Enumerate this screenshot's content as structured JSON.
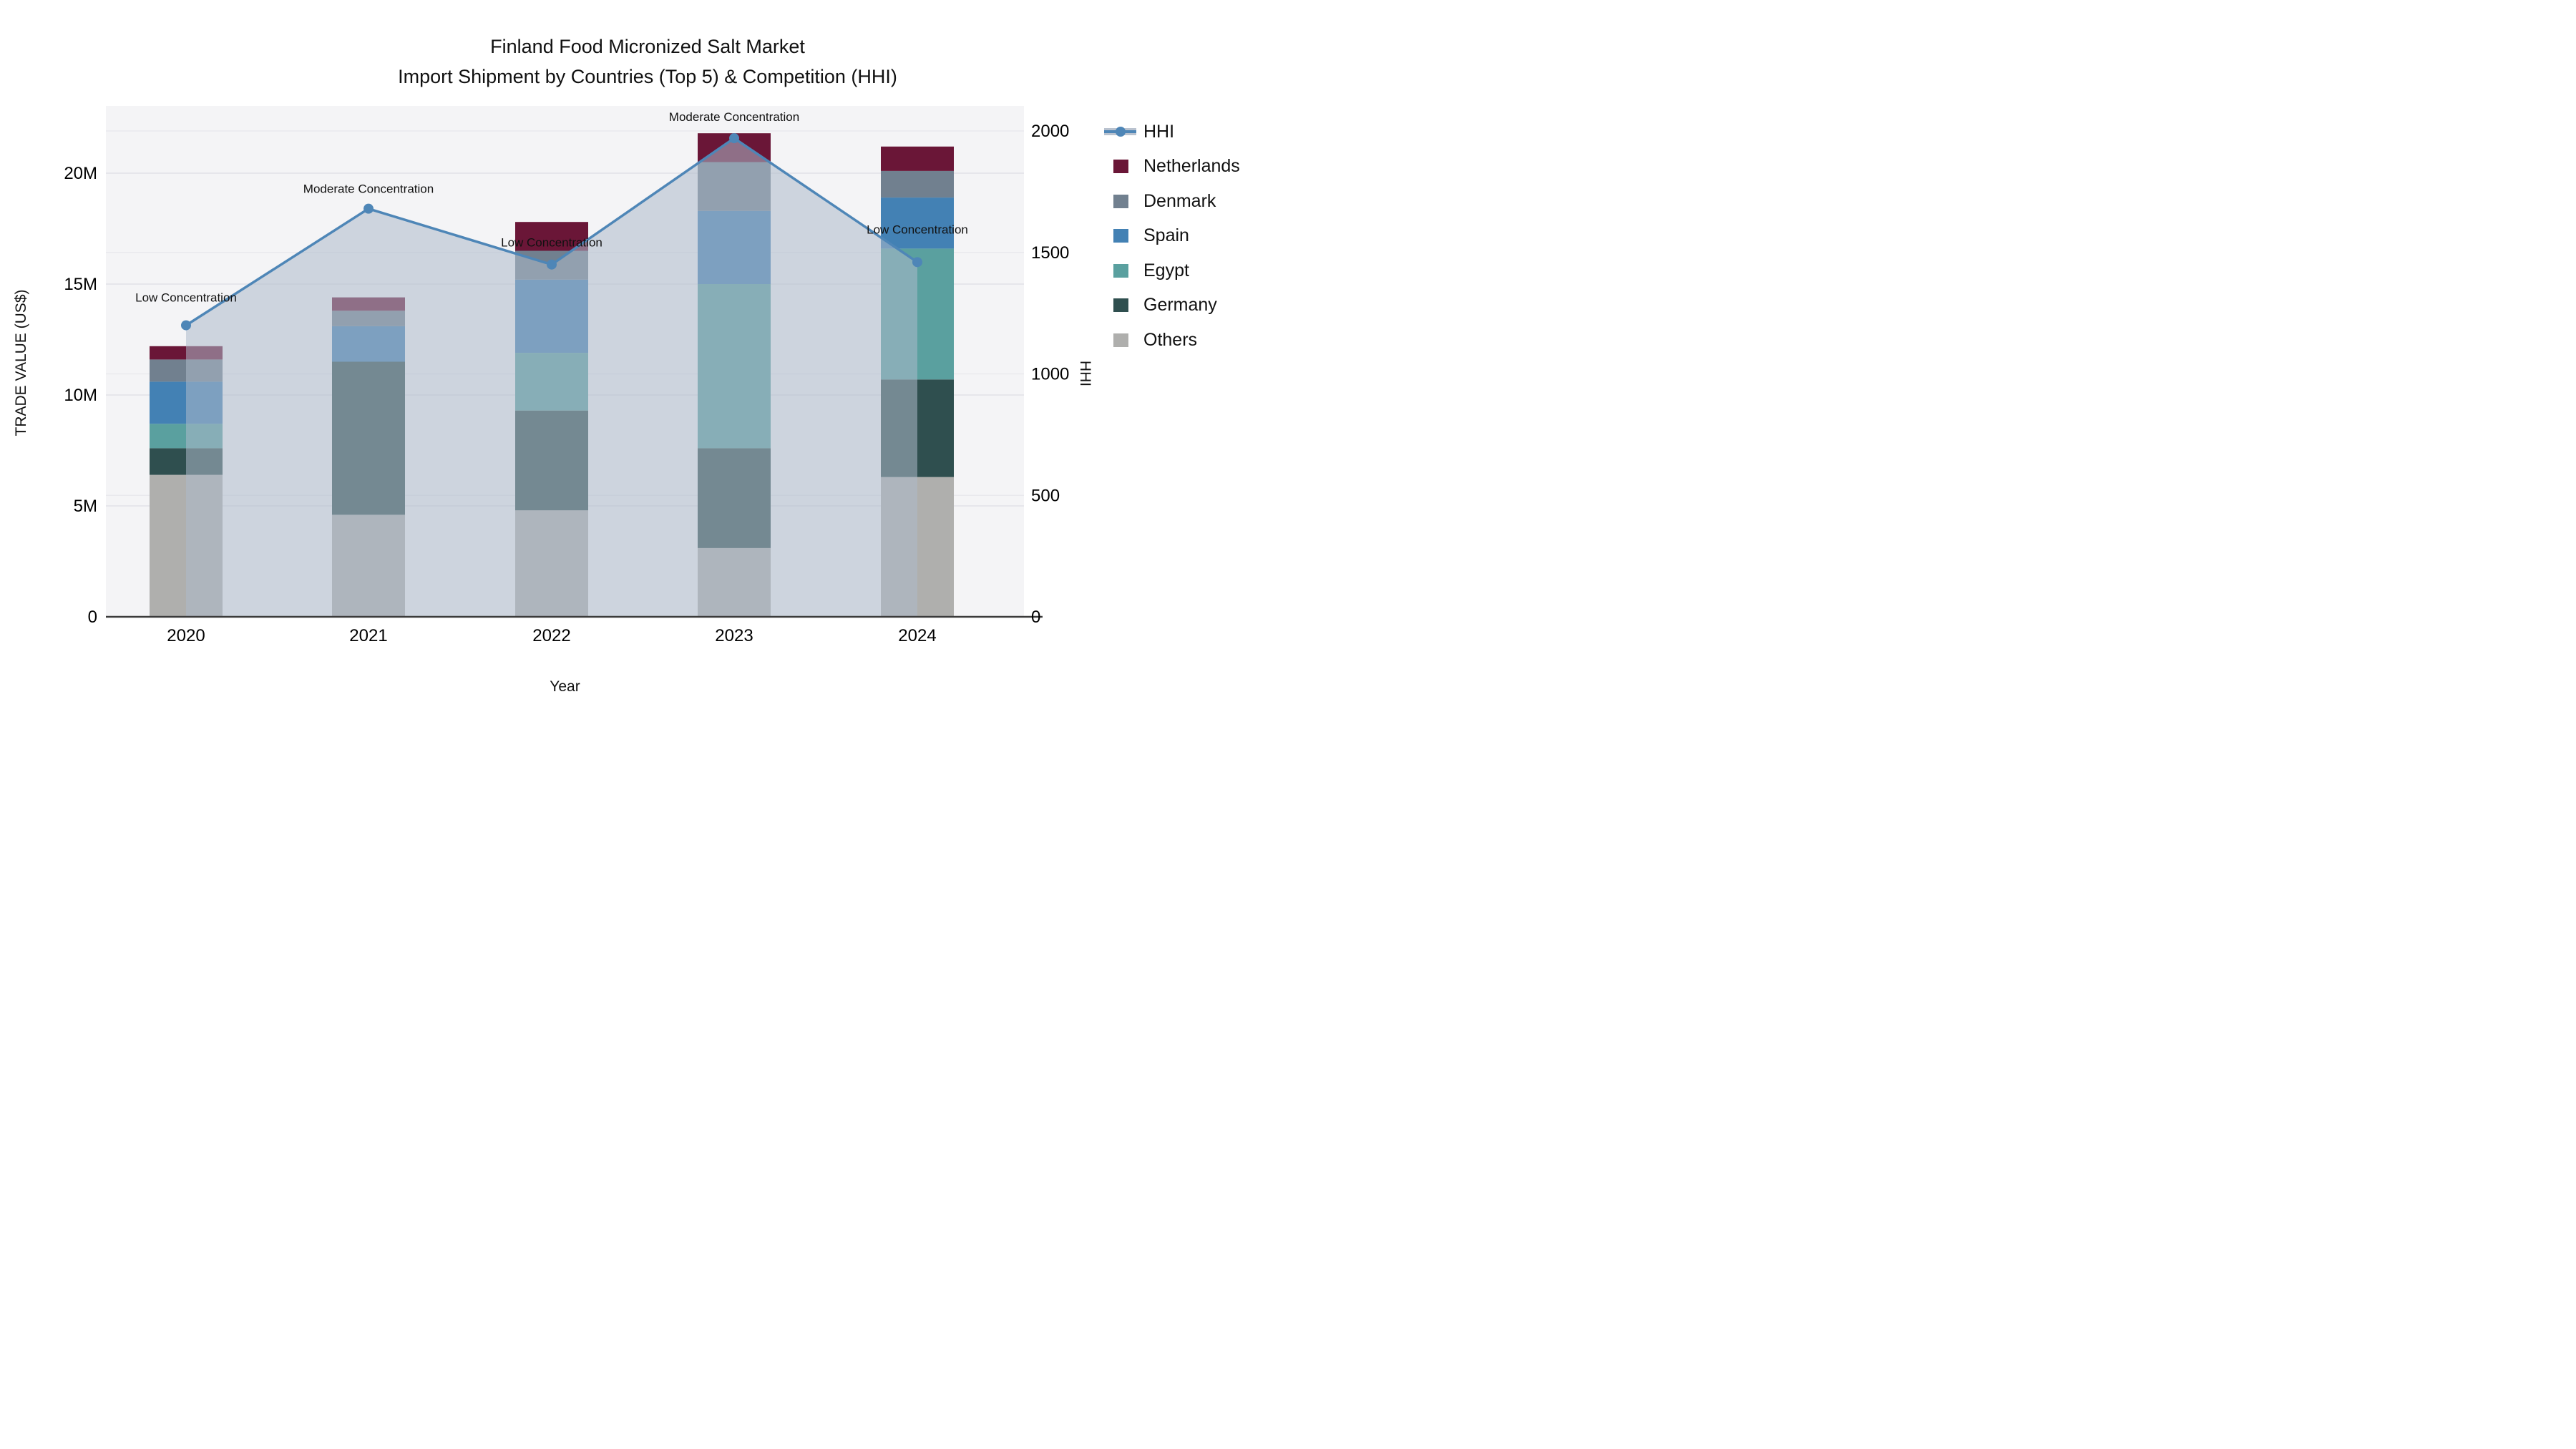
{
  "title": {
    "line1": "Finland Food Micronized Salt Market",
    "line2": "Import Shipment by Countries (Top 5) & Competition (HHI)"
  },
  "axes": {
    "y_left": {
      "title": "TRADE VALUE (US$)",
      "tick_labels": [
        "0",
        "5M",
        "10M",
        "15M",
        "20M"
      ],
      "tick_values": [
        0,
        5,
        10,
        15,
        20
      ],
      "units": "millions USD"
    },
    "y_right": {
      "title": "HHI",
      "tick_labels": [
        "0",
        "500",
        "1000",
        "1500",
        "2000"
      ],
      "tick_values": [
        0,
        500,
        1000,
        1500,
        2000
      ]
    },
    "x": {
      "title": "Year"
    }
  },
  "chart_data": {
    "type": "bar",
    "subtype": "stacked-bar-with-line",
    "categories": [
      "2020",
      "2021",
      "2022",
      "2023",
      "2024"
    ],
    "stack_order_bottom_to_top": [
      "Others",
      "Germany",
      "Egypt",
      "Spain",
      "Denmark",
      "Netherlands"
    ],
    "series": [
      {
        "name": "Netherlands",
        "color": "#6A1637",
        "values": [
          0.6,
          0.6,
          1.3,
          1.3,
          1.1
        ]
      },
      {
        "name": "Denmark",
        "color": "#71808F",
        "values": [
          1.0,
          0.7,
          1.3,
          2.2,
          1.2
        ]
      },
      {
        "name": "Spain",
        "color": "#4381B4",
        "values": [
          1.9,
          1.6,
          3.3,
          3.3,
          2.3
        ]
      },
      {
        "name": "Egypt",
        "color": "#5AA09F",
        "values": [
          1.1,
          0.0,
          2.6,
          7.4,
          5.9
        ]
      },
      {
        "name": "Germany",
        "color": "#2F4F4F",
        "values": [
          1.2,
          6.9,
          4.5,
          4.5,
          4.4
        ]
      },
      {
        "name": "Others",
        "color": "#AFAFAD",
        "values": [
          6.4,
          4.6,
          4.8,
          3.1,
          6.3
        ]
      }
    ],
    "line_series": {
      "name": "HHI",
      "color": "#4E86B7",
      "fill_color": "rgba(173,186,203,0.55)",
      "values": [
        1200,
        1680,
        1450,
        1970,
        1460
      ]
    },
    "annotations": [
      {
        "category": "2020",
        "text": "Low Concentration"
      },
      {
        "category": "2021",
        "text": "Moderate Concentration"
      },
      {
        "category": "2022",
        "text": "Low Concentration"
      },
      {
        "category": "2023",
        "text": "Moderate Concentration"
      },
      {
        "category": "2024",
        "text": "Low Concentration"
      }
    ],
    "ylim_left_millions": [
      0,
      23
    ],
    "ylim_right_hhi": [
      0,
      2103
    ],
    "grid": true,
    "legend_position": "right"
  },
  "legend": {
    "items": [
      {
        "label": "HHI",
        "type": "line",
        "color": "#4E86B7"
      },
      {
        "label": "Netherlands",
        "type": "swatch",
        "color": "#6A1637"
      },
      {
        "label": "Denmark",
        "type": "swatch",
        "color": "#71808F"
      },
      {
        "label": "Spain",
        "type": "swatch",
        "color": "#4381B4"
      },
      {
        "label": "Egypt",
        "type": "swatch",
        "color": "#5AA09F"
      },
      {
        "label": "Germany",
        "type": "swatch",
        "color": "#2F4F4F"
      },
      {
        "label": "Others",
        "type": "swatch",
        "color": "#AFAFAD"
      }
    ]
  },
  "colors": {
    "plot_background": "#F4F4F6",
    "figure_background": "#FFFFFF",
    "grid_left": "#E2E2E7",
    "grid_right": "#E9E9ED",
    "axis_line": "#3B3B3B",
    "text": "#111111"
  }
}
